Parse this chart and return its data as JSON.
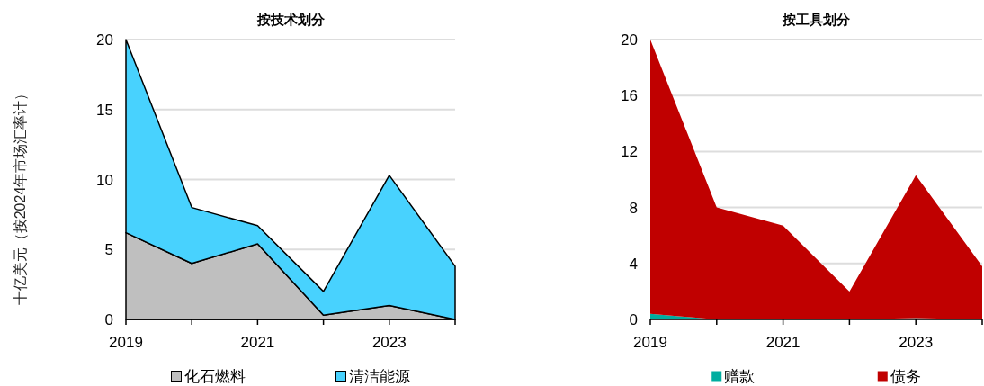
{
  "chart_data": [
    {
      "type": "area",
      "title": "按技术划分",
      "ylabel": "十亿美元（按2024年市场汇率计）",
      "x": [
        2019,
        2020,
        2021,
        2022,
        2023,
        2024
      ],
      "xlim": [
        2019,
        2024
      ],
      "xticks": [
        2019,
        {
          "value": 2020,
          "label": null
        },
        2021,
        {
          "value": 2022,
          "label": null
        },
        2023,
        {
          "value": 2024,
          "label": null
        }
      ],
      "ylim": [
        0,
        20
      ],
      "yticks": [
        0,
        5,
        10,
        15,
        20
      ],
      "stacked": true,
      "grid": "y",
      "legend": "bottom",
      "line_style": "solid",
      "series": [
        {
          "name": "化石燃料",
          "color": "#bfbfbf",
          "values": [
            6.2,
            4.0,
            5.4,
            0.3,
            1.0,
            0.0
          ]
        },
        {
          "name": "清洁能源",
          "color": "#48d2fe",
          "values": [
            13.8,
            4.0,
            1.3,
            1.7,
            9.3,
            3.8
          ]
        }
      ]
    },
    {
      "type": "area",
      "title": "按工具划分",
      "x": [
        2019,
        2020,
        2021,
        2022,
        2023,
        2024
      ],
      "xlim": [
        2019,
        2024
      ],
      "xticks": [
        2019,
        {
          "value": 2020,
          "label": null
        },
        2021,
        {
          "value": 2022,
          "label": null
        },
        2023,
        {
          "value": 2024,
          "label": null
        }
      ],
      "ylim": [
        0,
        20
      ],
      "yticks": [
        0,
        4,
        8,
        12,
        16,
        20
      ],
      "stacked": true,
      "grid": "y",
      "legend": "bottom",
      "series": [
        {
          "name": "赠款",
          "color": "#00ada0",
          "values": [
            0.4,
            0.0,
            0.0,
            0.0,
            0.1,
            0.0
          ]
        },
        {
          "name": "债务",
          "color": "#c00000",
          "values": [
            19.6,
            8.0,
            6.7,
            2.0,
            10.2,
            3.8
          ]
        }
      ]
    }
  ]
}
